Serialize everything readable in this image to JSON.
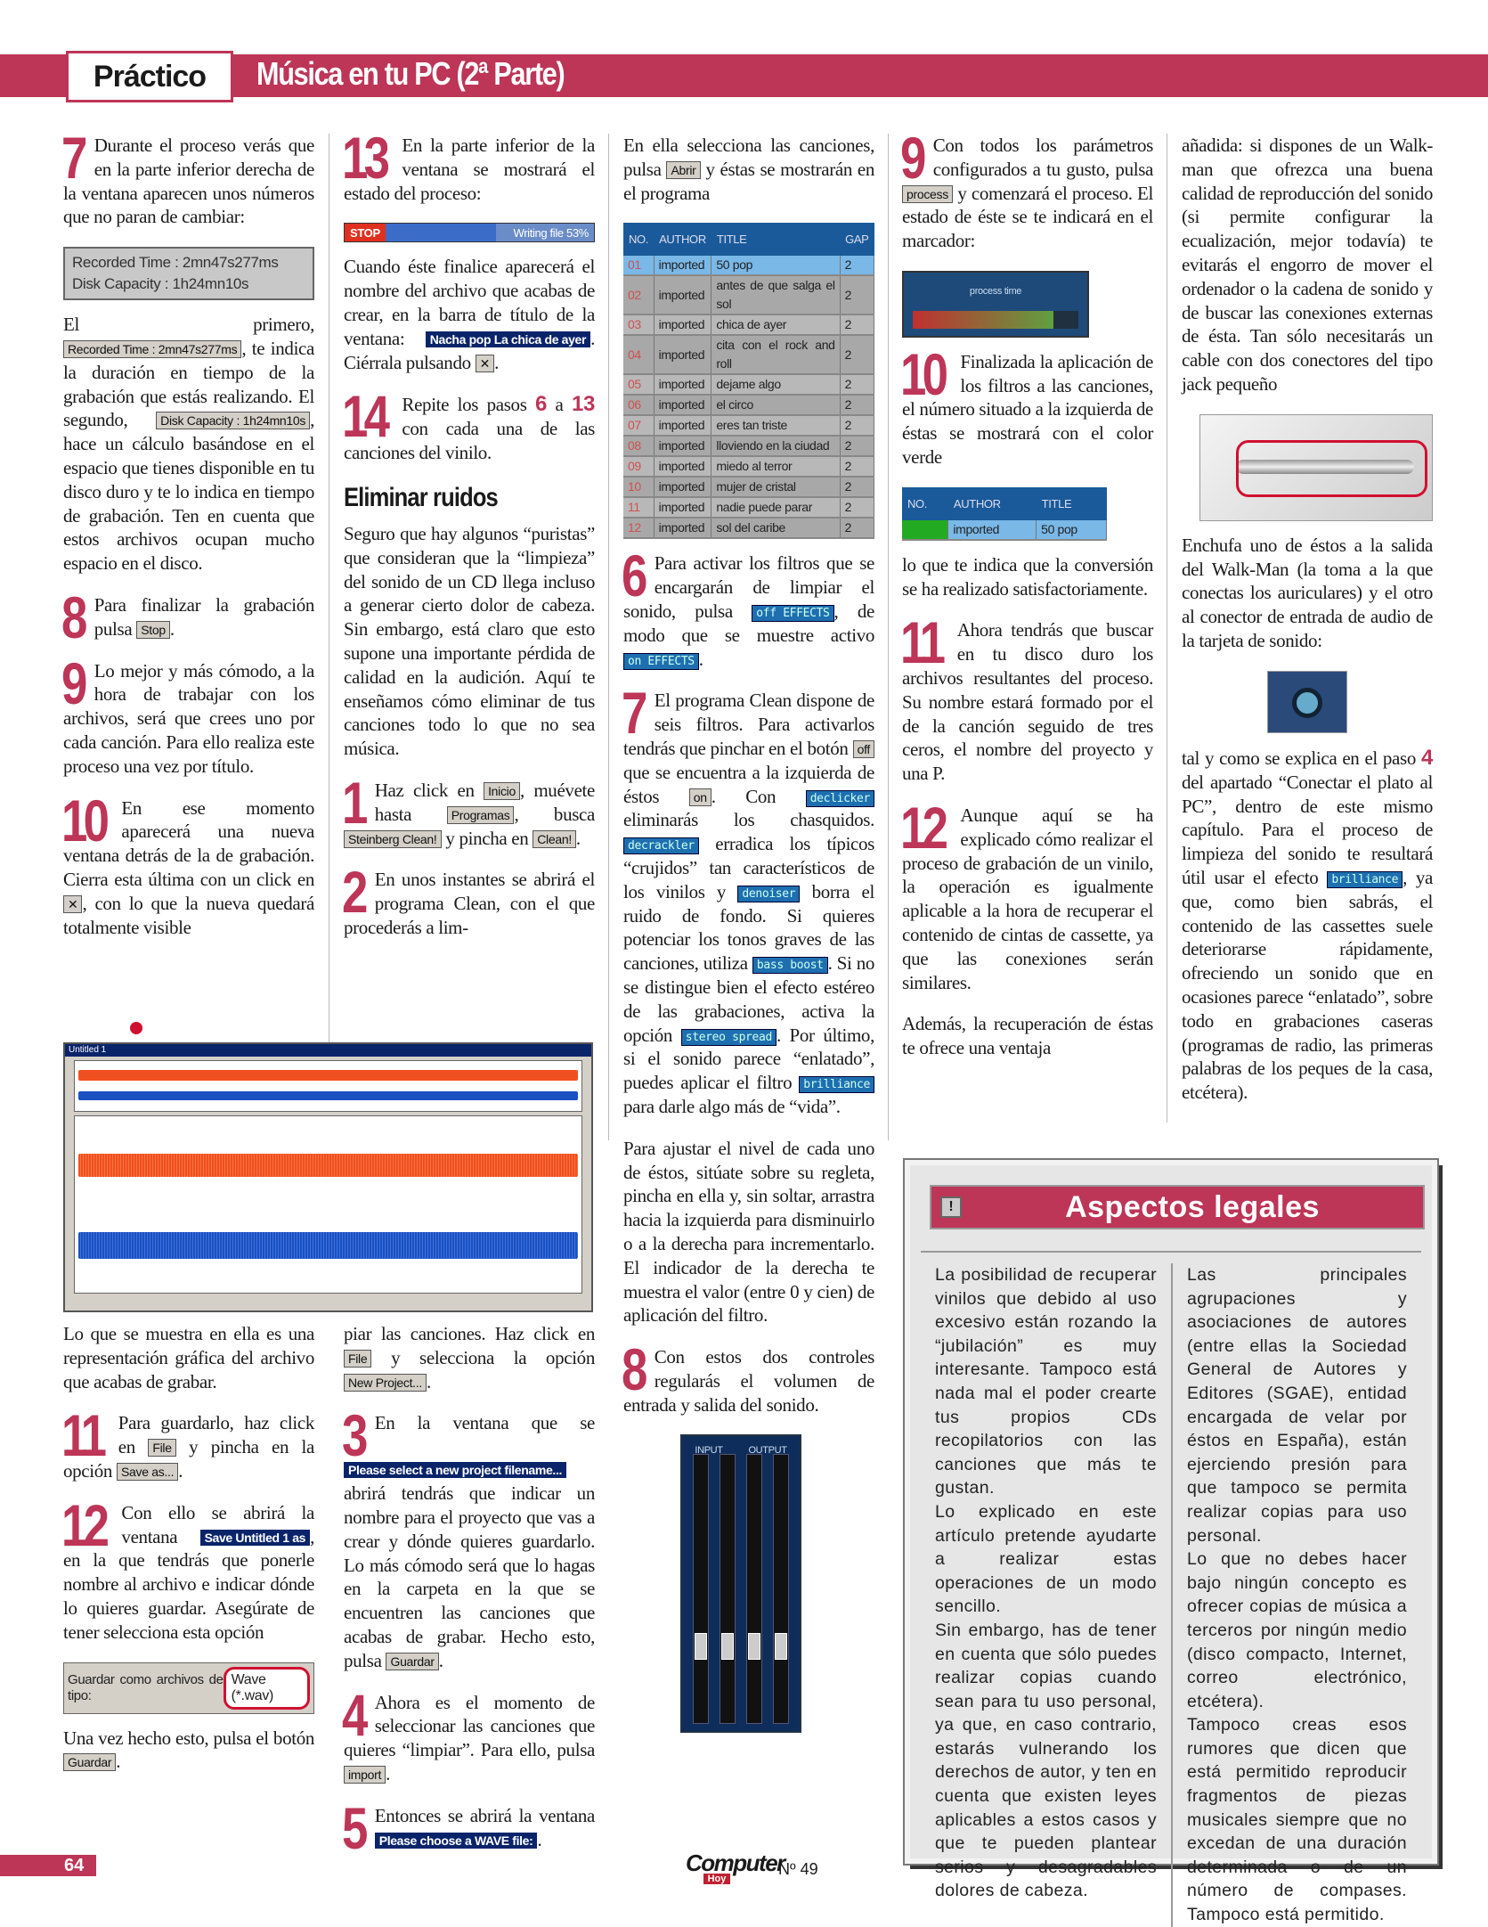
{
  "header": {
    "section": "Práctico",
    "title": "Música en tu PC (2ª Parte)"
  },
  "sections": {
    "c1a": [
      {
        "step": "7",
        "parts": [
          {
            "t": "Durante el proceso verás que en la parte inferior derecha de la ventana aparecen unos números que no paran de cambiar:"
          }
        ]
      },
      {
        "fig": "lcd",
        "lines": [
          "Recorded Time : 2mn47s277ms",
          "Disk Capacity : 1h24mn10s"
        ]
      },
      {
        "parts": [
          {
            "t": "El primero, "
          },
          {
            "chip": "Recorded Time : 2mn47s277ms"
          },
          {
            "t": ", te indica la duración en tiempo de la grabación que estás realizando. El segundo, "
          },
          {
            "chip": "Disk Capacity : 1h24mn10s"
          },
          {
            "t": ", hace un cálculo basándose en el espacio que tienes disponible en tu disco duro y te lo indica en tiempo de grabación. Ten en cuenta que estos archivos ocupan mucho espacio en el disco."
          }
        ]
      },
      {
        "step": "8",
        "parts": [
          {
            "t": "Para finalizar la grabación pulsa "
          },
          {
            "chip": "Stop"
          },
          {
            "t": "."
          }
        ]
      },
      {
        "step": "9",
        "parts": [
          {
            "t": "Lo mejor y más cómodo, a la hora de trabajar con los archivos, será que crees uno por cada canción. Para ello realiza este proceso una vez por título."
          }
        ]
      },
      {
        "step": "10",
        "parts": [
          {
            "t": "En ese momento aparecerá una nueva ventana detrás de la de grabación. Cierra esta última con un click en "
          },
          {
            "chip": "✕"
          },
          {
            "t": ", con lo que la nueva quedará totalmente visible"
          }
        ]
      }
    ],
    "c1b": [
      {
        "parts": [
          {
            "t": "Lo que se muestra en ella es una representación gráfica del archivo que acabas de grabar."
          }
        ]
      },
      {
        "step": "11",
        "parts": [
          {
            "t": "Para guardarlo, haz click en "
          },
          {
            "chip": "File"
          },
          {
            "t": " y pincha en la opción "
          },
          {
            "chip": "Save as..."
          },
          {
            "t": "."
          }
        ]
      },
      {
        "step": "12",
        "parts": [
          {
            "t": "Con ello se abrirá la ventana "
          },
          {
            "tchip": "Save Untitled 1 as"
          },
          {
            "t": ", en la que tendrás que ponerle nombre al archivo e indicar dónde lo quieres guardar. Asegúrate de tener selecciona esta opción"
          }
        ]
      },
      {
        "fig": "saveas",
        "label": "Guardar como archivos de tipo:",
        "value": "Wave (*.wav)"
      },
      {
        "parts": [
          {
            "t": "Una vez hecho esto, pulsa el botón "
          },
          {
            "chip": "Guardar"
          },
          {
            "t": "."
          }
        ]
      }
    ],
    "c2a": [
      {
        "step": "13",
        "parts": [
          {
            "t": "En la parte inferior de la ventana se mostrará el estado del proceso:"
          }
        ]
      },
      {
        "fig": "progress",
        "stop": "STOP",
        "label": "Writing file 53%",
        "percent": 53
      },
      {
        "parts": [
          {
            "t": "Cuando éste finalice aparecerá el nombre del archivo que acabas de crear, en la barra de título de la ventana: "
          },
          {
            "tchip": "Nacha pop La chica de ayer"
          },
          {
            "t": ". Ciérrala pulsando "
          },
          {
            "chip": "✕"
          },
          {
            "t": "."
          }
        ]
      },
      {
        "step": "14",
        "parts": [
          {
            "t": "Repite los pasos "
          },
          {
            "red": "6"
          },
          {
            "t": " a "
          },
          {
            "red": "13"
          },
          {
            "t": " con cada una de las canciones del vinilo."
          }
        ]
      },
      {
        "heading": "Eliminar ruidos"
      },
      {
        "parts": [
          {
            "t": "Seguro que hay algunos “puristas” que consideran que la “limpieza” del sonido de un CD llega incluso a generar cierto dolor de cabeza. Sin embargo, está claro que esto supone una importante pérdida de calidad en la audición. Aquí te enseñamos cómo eliminar de tus canciones todo lo que no sea música."
          }
        ]
      },
      {
        "step": "1",
        "parts": [
          {
            "t": "Haz click en "
          },
          {
            "chip": "Inicio"
          },
          {
            "t": ", muévete hasta "
          },
          {
            "chip": "Programas"
          },
          {
            "t": ", busca "
          },
          {
            "chip": "Steinberg Clean!"
          },
          {
            "t": " y pincha en "
          },
          {
            "chip": "Clean!"
          },
          {
            "t": "."
          }
        ]
      },
      {
        "step": "2",
        "parts": [
          {
            "t": "En unos instantes se abrirá el programa Clean, con el que procederás a lim-"
          }
        ]
      }
    ],
    "c2b": [
      {
        "parts": [
          {
            "t": "piar las canciones. Haz click en "
          },
          {
            "chip": "File"
          },
          {
            "t": " y selecciona la opción "
          },
          {
            "chip": "New Project..."
          },
          {
            "t": "."
          }
        ]
      },
      {
        "step": "3",
        "parts": [
          {
            "t": "En la ventana que se "
          },
          {
            "tchip": "Please select a new project filename..."
          },
          {
            "t": " abrirá tendrás que indicar un nombre para el proyecto que vas a crear y dónde quieres guardarlo. Lo más cómodo será que lo hagas en la carpeta en la que se encuentren las canciones que acabas de grabar. Hecho esto, pulsa "
          },
          {
            "chip": "Guardar"
          },
          {
            "t": "."
          }
        ]
      },
      {
        "step": "4",
        "parts": [
          {
            "t": "Ahora es el momento de seleccionar las canciones que quieres “limpiar”. Para ello, pulsa "
          },
          {
            "chip": "import"
          },
          {
            "t": "."
          }
        ]
      },
      {
        "step": "5",
        "parts": [
          {
            "t": "Entonces se abrirá la ventana "
          },
          {
            "tchip": "Please choose a WAVE file:"
          },
          {
            "t": "."
          }
        ]
      }
    ],
    "c3": [
      {
        "parts": [
          {
            "t": "En ella selecciona las canciones, pulsa "
          },
          {
            "chip": "Abrir"
          },
          {
            "t": " y éstas se mostrarán en el programa"
          }
        ]
      },
      {
        "fig": "table",
        "headers": [
          "NO.",
          "AUTHOR",
          "TITLE",
          "GAP"
        ],
        "rows": [
          [
            "01",
            "imported",
            "50 pop",
            "2"
          ],
          [
            "02",
            "imported",
            "antes de que salga el sol",
            "2"
          ],
          [
            "03",
            "imported",
            "chica de ayer",
            "2"
          ],
          [
            "04",
            "imported",
            "cita con el rock and roll",
            "2"
          ],
          [
            "05",
            "imported",
            "dejame algo",
            "2"
          ],
          [
            "06",
            "imported",
            "el circo",
            "2"
          ],
          [
            "07",
            "imported",
            "eres tan triste",
            "2"
          ],
          [
            "08",
            "imported",
            "lloviendo en la ciudad",
            "2"
          ],
          [
            "09",
            "imported",
            "miedo al terror",
            "2"
          ],
          [
            "10",
            "imported",
            "mujer de cristal",
            "2"
          ],
          [
            "11",
            "imported",
            "nadie puede parar",
            "2"
          ],
          [
            "12",
            "imported",
            "sol del caribe",
            "2"
          ]
        ]
      },
      {
        "step": "6",
        "parts": [
          {
            "t": "Para activar los filtros que se encargarán de limpiar el sonido, pulsa "
          },
          {
            "ef": "off EFFECTS"
          },
          {
            "t": ", de modo que se muestre activo "
          },
          {
            "ef": "on EFFECTS"
          },
          {
            "t": "."
          }
        ]
      },
      {
        "step": "7",
        "parts": [
          {
            "t": "El programa Clean dispone de seis filtros. Para activarlos tendrás que pinchar en el botón "
          },
          {
            "chip": "off"
          },
          {
            "t": " que se encuentra a la izquierda de éstos "
          },
          {
            "chip": "on"
          },
          {
            "t": ". Con "
          },
          {
            "ef": "declicker"
          },
          {
            "t": " eliminarás los chasquidos. "
          },
          {
            "ef": "decrackler"
          },
          {
            "t": " erradica los típicos “crujidos” tan característicos de los vinilos y "
          },
          {
            "ef": "denoiser"
          },
          {
            "t": " borra el ruido de fondo. Si quieres potenciar los tonos graves de las canciones, utiliza "
          },
          {
            "ef": "bass boost"
          },
          {
            "t": ". Si no se distingue bien el efecto estéreo de las grabaciones, activa la opción "
          },
          {
            "ef": "stereo spread"
          },
          {
            "t": ". Por último, si el sonido parece “enlatado”, puedes aplicar el filtro "
          },
          {
            "ef": "brilliance"
          },
          {
            "t": " para darle algo más de “vida”."
          }
        ]
      },
      {
        "parts": [
          {
            "t": "Para ajustar el nivel de cada uno de éstos, sitúate sobre su regleta, pincha en ella y, sin soltar, arrastra hacia la izquierda para disminuirlo o a la derecha para incrementarlo. El indicador de la derecha te muestra el valor (entre 0 y cien) de aplicación del filtro."
          }
        ]
      },
      {
        "step": "8",
        "parts": [
          {
            "t": "Con estos dos controles regularás el volumen de entrada y salida del sonido."
          }
        ]
      },
      {
        "fig": "mixer",
        "labels": [
          "INPUT",
          "OUTPUT"
        ]
      }
    ],
    "c4": [
      {
        "step": "9",
        "parts": [
          {
            "t": "Con todos los parámetros configurados a tu gusto, pulsa "
          },
          {
            "chip": "process"
          },
          {
            "t": " y comenzará el proceso. El estado de éste se te indicará en el marcador:"
          }
        ]
      },
      {
        "fig": "ptime",
        "label": "process time"
      },
      {
        "step": "10",
        "parts": [
          {
            "t": "Finalizada la aplicación de los filtros a las canciones, el número situado a la izquierda de éstas se mostrará con el color verde"
          }
        ]
      },
      {
        "fig": "minitable",
        "headers": [
          "NO.",
          "AUTHOR",
          "TITLE"
        ],
        "row": [
          "",
          "imported",
          "50 pop"
        ]
      },
      {
        "parts": [
          {
            "t": "lo que te indica que la conversión se ha realizado satisfactoriamente."
          }
        ]
      },
      {
        "step": "11",
        "parts": [
          {
            "t": "Ahora tendrás que buscar en tu disco duro los archivos resultantes del proceso. Su nombre estará formado por el de la canción seguido de tres ceros, el nombre del proyecto y una P."
          }
        ]
      },
      {
        "step": "12",
        "parts": [
          {
            "t": "Aunque aquí se ha explicado cómo realizar el proceso de grabación de un vinilo, la operación es igualmente aplicable a la hora de recuperar el contenido de cintas de cassette, ya que las conexiones serán similares."
          }
        ]
      },
      {
        "parts": [
          {
            "t": "Además, la recuperación de éstas te ofrece una ventaja"
          }
        ]
      }
    ],
    "c5": [
      {
        "parts": [
          {
            "t": "añadida: si dispones de un Walk-man que ofrezca una buena calidad de reproducción del sonido (si permite configurar la ecualización, mejor todavía) te evitarás el engorro de mover el ordenador o la cadena de sonido y de buscar las conexiones externas de ésta. Tan sólo necesitarás un cable con dos conectores del tipo jack pequeño"
          }
        ]
      },
      {
        "fig": "jack"
      },
      {
        "parts": [
          {
            "t": "Enchufa uno de éstos a la salida del Walk-Man (la toma a la que conectas los auriculares) y el otro al conector de entrada de audio de la tarjeta de sonido:"
          }
        ]
      },
      {
        "fig": "socket"
      },
      {
        "parts": [
          {
            "t": "tal y como se explica en el paso "
          },
          {
            "red": "4"
          },
          {
            "t": " del apartado “Conectar el plato al PC”, dentro de este mismo capítulo. Para el proceso de limpieza del sonido te resultará útil usar el efecto "
          },
          {
            "ef": "brilliance"
          },
          {
            "t": ", ya que, como bien sabrás, el contenido de las cassettes suele deteriorarse rápidamente, ofreciendo un sonido que en ocasiones parece “enlatado”, sobre todo en grabaciones caseras (programas de radio, las primeras palabras de los peques de la casa, etcétera)."
          }
        ]
      }
    ]
  },
  "waveform": {
    "title": "Untitled 1"
  },
  "legal": {
    "icon": "!",
    "title": "Aspectos legales",
    "left": [
      "La posibilidad de recuperar vinilos que debido al uso excesivo están rozando la “jubilación” es muy interesante. Tampoco está nada mal el poder crearte tus propios CDs recopilatorios con las canciones que más te gustan.",
      "Lo explicado en este artículo pretende ayudarte a realizar estas operaciones de un modo sencillo.",
      "Sin embargo, has de tener en cuenta que sólo puedes realizar copias cuando sean para tu uso personal, ya que, en caso contrario, estarás vulnerando los derechos de autor, y ten en cuenta que existen leyes aplicables a estos casos y que te pueden plantear serios y desagradables dolores de cabeza."
    ],
    "right": [
      "Las principales agrupaciones y asociaciones de autores (entre ellas la Sociedad General de Autores y Editores (SGAE), entidad encargada de velar por éstos en España), están ejerciendo presión para que tampoco se permita realizar copias para uso personal.",
      "Lo que no debes hacer bajo ningún concepto es ofrecer copias de música a terceros por ningún medio (disco compacto, Internet, correo electrónico, etcétera).",
      "Tampoco creas esos rumores que dicen que está permitido reproducir fragmentos de piezas musicales siempre que no excedan de una duración determinada o de un número de compases. Tampoco está permitido."
    ]
  },
  "footer": {
    "page": "64",
    "logo": "Computer",
    "logo_sub": "Hoy",
    "issue": "Nº 49"
  },
  "colors": {
    "accent": "#bd3557",
    "wave_top": "#f05020",
    "wave_bottom": "#1a50c0",
    "win_title": "#0a246a"
  }
}
